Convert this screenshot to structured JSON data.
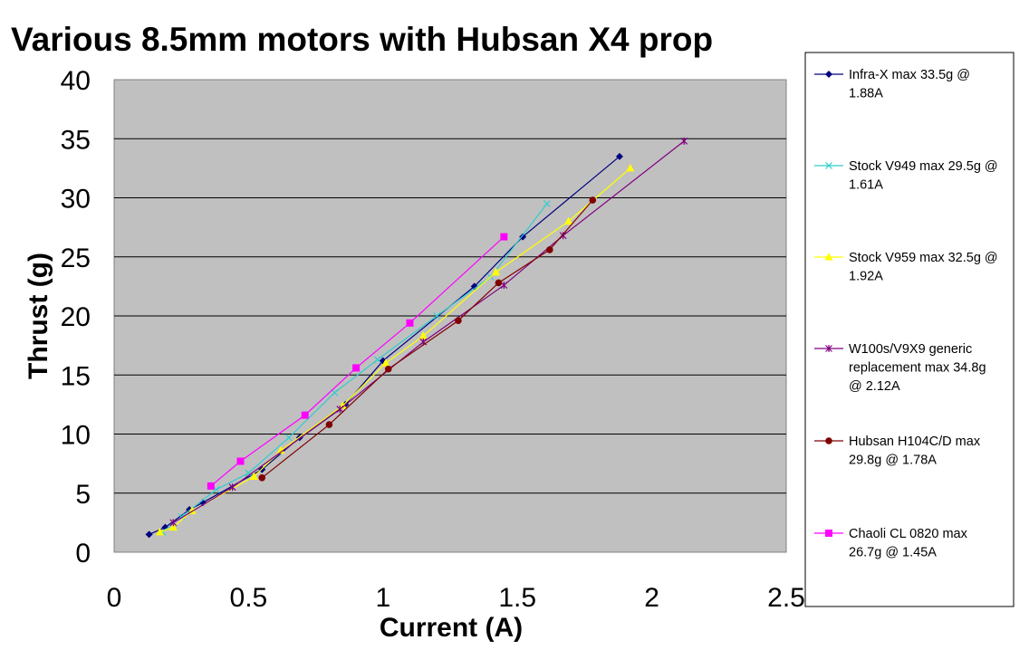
{
  "chart_data": {
    "type": "line",
    "title": "Various 8.5mm motors with Hubsan X4 prop",
    "xlabel": "Current (A)",
    "ylabel": "Thrust (g)",
    "xlim": [
      0,
      2.5
    ],
    "ylim": [
      0,
      40
    ],
    "x_ticks": [
      "0",
      "0.5",
      "1",
      "1.5",
      "2",
      "2.5"
    ],
    "y_ticks": [
      "0",
      "5",
      "10",
      "15",
      "20",
      "25",
      "30",
      "35",
      "40"
    ],
    "grid": "horizontal",
    "plot_background": "#c0c0c0",
    "legend_position": "right",
    "series": [
      {
        "name": "Infra-X max 33.5g @ 1.88A",
        "color": "#000080",
        "marker": "diamond",
        "points": [
          [
            0.13,
            1.5
          ],
          [
            0.19,
            2.1
          ],
          [
            0.28,
            3.6
          ],
          [
            0.33,
            4.2
          ],
          [
            0.55,
            7.0
          ],
          [
            0.69,
            9.7
          ],
          [
            0.86,
            12.5
          ],
          [
            1.0,
            16.2
          ],
          [
            1.34,
            22.5
          ],
          [
            1.52,
            26.7
          ],
          [
            1.88,
            33.5
          ]
        ]
      },
      {
        "name": "Stock V949 max 29.5g @ 1.61A",
        "color": "#33cccc",
        "marker": "x",
        "points": [
          [
            0.18,
            1.7
          ],
          [
            0.25,
            3.0
          ],
          [
            0.38,
            5.3
          ],
          [
            0.5,
            6.7
          ],
          [
            0.65,
            9.7
          ],
          [
            0.82,
            13.5
          ],
          [
            0.98,
            16.3
          ],
          [
            1.2,
            20.0
          ],
          [
            1.4,
            23.3
          ],
          [
            1.61,
            29.5
          ]
        ]
      },
      {
        "name": "Stock V959 max 32.5g @ 1.92A",
        "color": "#ffff00",
        "marker": "triangle",
        "points": [
          [
            0.17,
            1.7
          ],
          [
            0.22,
            2.1
          ],
          [
            0.29,
            3.5
          ],
          [
            0.52,
            6.4
          ],
          [
            0.62,
            8.6
          ],
          [
            0.85,
            12.4
          ],
          [
            1.01,
            16.0
          ],
          [
            1.15,
            18.3
          ],
          [
            1.42,
            23.7
          ],
          [
            1.69,
            28.0
          ],
          [
            1.92,
            32.5
          ]
        ]
      },
      {
        "name": "W100s/V9X9 generic replacement max 34.8g @ 2.12A",
        "color": "#800080",
        "marker": "star",
        "points": [
          [
            0.22,
            2.5
          ],
          [
            0.44,
            5.5
          ],
          [
            0.84,
            12.1
          ],
          [
            1.15,
            17.8
          ],
          [
            1.45,
            22.6
          ],
          [
            1.67,
            26.8
          ],
          [
            2.12,
            34.8
          ]
        ]
      },
      {
        "name": " Hubsan H104C/D max 29.8g @ 1.78A",
        "color": "#800000",
        "marker": "circle",
        "points": [
          [
            0.55,
            6.3
          ],
          [
            0.8,
            10.8
          ],
          [
            1.02,
            15.5
          ],
          [
            1.28,
            19.6
          ],
          [
            1.43,
            22.8
          ],
          [
            1.62,
            25.6
          ],
          [
            1.78,
            29.8
          ]
        ]
      },
      {
        "name": "Chaoli CL 0820 max 26.7g @ 1.45A",
        "color": "#ff00ff",
        "marker": "square",
        "points": [
          [
            0.36,
            5.6
          ],
          [
            0.47,
            7.7
          ],
          [
            0.71,
            11.6
          ],
          [
            0.9,
            15.6
          ],
          [
            1.1,
            19.4
          ],
          [
            1.45,
            26.7
          ]
        ]
      }
    ]
  }
}
